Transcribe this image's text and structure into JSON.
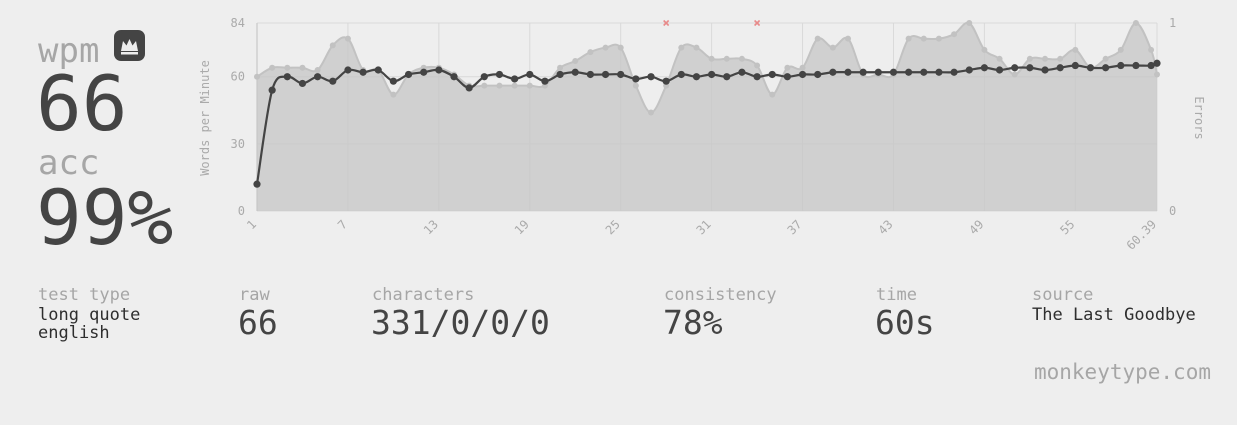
{
  "result": {
    "wpm_label": "wpm",
    "wpm": "66",
    "acc_label": "acc",
    "acc": "99%",
    "personal_best_icon": "crown-icon"
  },
  "stats": {
    "test_type": {
      "label": "test type",
      "lines": [
        "long quote",
        "english"
      ]
    },
    "raw": {
      "label": "raw",
      "value": "66"
    },
    "characters": {
      "label": "characters",
      "value": "331/0/0/0"
    },
    "consistency": {
      "label": "consistency",
      "value": "78%"
    },
    "time": {
      "label": "time",
      "value": "60s"
    },
    "source": {
      "label": "source",
      "value": "The Last Goodbye"
    }
  },
  "brand": "monkeytype.com",
  "chart_data": {
    "type": "line",
    "ylabel": "Words per Minute",
    "y2label": "Errors",
    "ylim": [
      0,
      84
    ],
    "y_ticks": [
      "0",
      "30",
      "60",
      "84"
    ],
    "y2lim": [
      0,
      1
    ],
    "y2_ticks": [
      "0",
      "1"
    ],
    "x_ticks": [
      "1",
      "7",
      "13",
      "19",
      "25",
      "31",
      "37",
      "43",
      "49",
      "55",
      "60.39"
    ],
    "grid": true,
    "colors": {
      "wpm": "#444444",
      "raw": "#c2c2c2",
      "area": "#c6c6c6",
      "error": "#e88a8a",
      "grid": "#d9d9d9"
    },
    "x": [
      1,
      2,
      3,
      4,
      5,
      6,
      7,
      8,
      9,
      10,
      11,
      12,
      13,
      14,
      15,
      16,
      17,
      18,
      19,
      20,
      21,
      22,
      23,
      24,
      25,
      26,
      27,
      28,
      29,
      30,
      31,
      32,
      33,
      34,
      35,
      36,
      37,
      38,
      39,
      40,
      41,
      42,
      43,
      44,
      45,
      46,
      47,
      48,
      49,
      50,
      51,
      52,
      53,
      54,
      55,
      56,
      57,
      58,
      59,
      60,
      60.39
    ],
    "series": [
      {
        "name": "wpm",
        "values": [
          12,
          54,
          60,
          57,
          60,
          58,
          63,
          62,
          63,
          58,
          61,
          62,
          63,
          60,
          55,
          60,
          61,
          59,
          61,
          58,
          61,
          62,
          61,
          61,
          61,
          59,
          60,
          58,
          61,
          60,
          61,
          60,
          62,
          60,
          61,
          60,
          61,
          61,
          62,
          62,
          62,
          62,
          62,
          62,
          62,
          62,
          62,
          63,
          64,
          63,
          64,
          64,
          63,
          64,
          65,
          64,
          64,
          65,
          65,
          65,
          66
        ]
      },
      {
        "name": "raw",
        "values": [
          60,
          64,
          64,
          64,
          63,
          74,
          77,
          63,
          63,
          52,
          61,
          64,
          64,
          61,
          56,
          56,
          56,
          56,
          56,
          56,
          64,
          67,
          71,
          73,
          73,
          56,
          44,
          56,
          73,
          73,
          68,
          68,
          68,
          65,
          52,
          64,
          64,
          77,
          73,
          77,
          61,
          61,
          61,
          77,
          77,
          77,
          79,
          84,
          72,
          68,
          61,
          68,
          68,
          68,
          72,
          64,
          68,
          72,
          84,
          72,
          61
        ]
      },
      {
        "name": "errors",
        "points": [
          {
            "x": 28,
            "y": 1
          },
          {
            "x": 34,
            "y": 1
          }
        ]
      }
    ]
  }
}
